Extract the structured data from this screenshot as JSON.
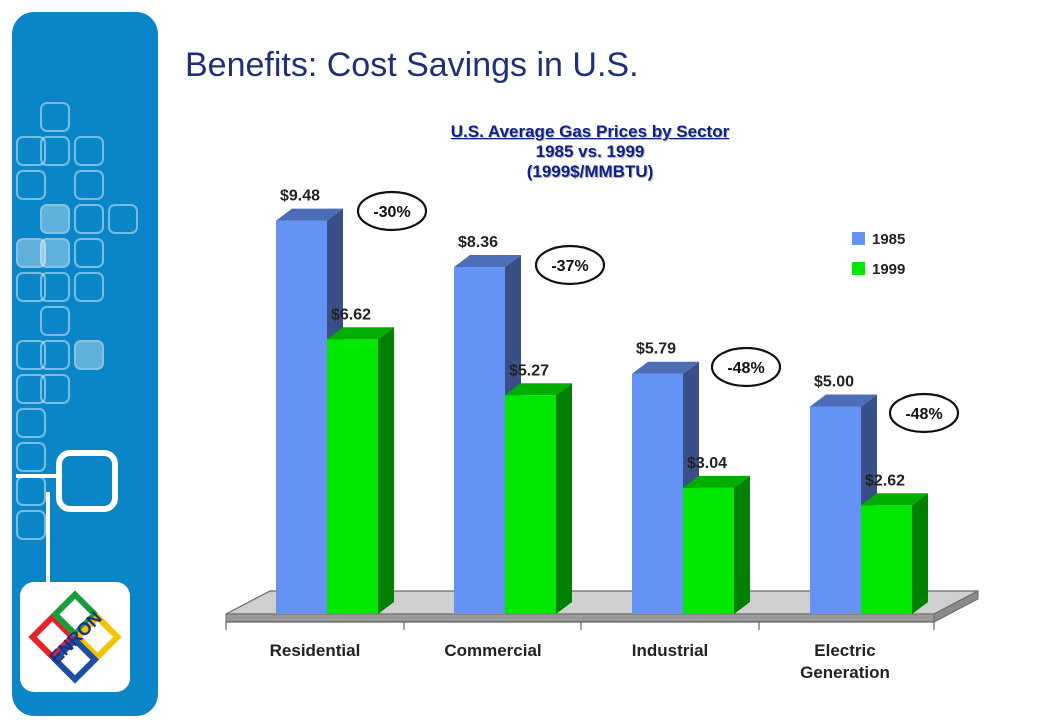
{
  "page": {
    "title": "Benefits: Cost Savings in U.S."
  },
  "colors": {
    "sidebar": "#0a86c8",
    "title": "#1f2f7a",
    "chart_title": "#0d1f8c",
    "series_1985": "#6592f5",
    "series_1999": "#00e800"
  },
  "logo": {
    "text": "ENRON"
  },
  "chart_data": {
    "type": "bar",
    "title_lines": [
      "U.S. Average Gas Prices by Sector",
      "1985 vs. 1999",
      "(1999$/MMBTU)"
    ],
    "categories": [
      [
        "Residential"
      ],
      [
        "Commercial"
      ],
      [
        "Industrial"
      ],
      [
        "Electric",
        "Generation"
      ]
    ],
    "series": [
      {
        "name": "1985",
        "values": [
          9.48,
          8.36,
          5.79,
          5.0
        ],
        "labels": [
          "$9.48",
          "$8.36",
          "$5.79",
          "$5.00"
        ],
        "color": "#6592f5"
      },
      {
        "name": "1999",
        "values": [
          6.62,
          5.27,
          3.04,
          2.62
        ],
        "labels": [
          "$6.62",
          "$5.27",
          "$3.04",
          "$2.62"
        ],
        "color": "#00e800"
      }
    ],
    "annotations": [
      "-30%",
      "-37%",
      "-48%",
      "-48%"
    ],
    "legend_position": "top-right",
    "grid": false,
    "style": "3d-clustered-bar"
  }
}
